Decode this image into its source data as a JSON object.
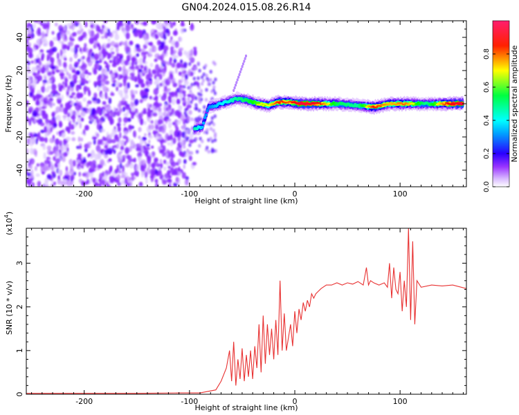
{
  "title": "GN04.2024.015.08.26.R14",
  "chart_data": [
    {
      "type": "heatmap",
      "xlabel": "Height of straight line (km)",
      "ylabel": "Frequency (Hz)",
      "xlim": [
        -255,
        163
      ],
      "ylim": [
        -50,
        50
      ],
      "xticks": [
        -200,
        -100,
        0,
        100
      ],
      "yticks": [
        -40,
        -20,
        0,
        20,
        40
      ],
      "grid": false,
      "colorbar": {
        "label": "Normalized spectral amplitude",
        "range": [
          0,
          1
        ],
        "ticks": [
          0.0,
          0.2,
          0.4,
          0.6,
          0.8
        ],
        "colors": [
          "#ffffff",
          "#9a35ff",
          "#0000ff",
          "#00ffff",
          "#00ff00",
          "#ffff00",
          "#ff0000",
          "#ff0066"
        ]
      },
      "noise_region": {
        "x": [
          -255,
          -90
        ],
        "y": [
          -50,
          50
        ],
        "amplitude": 0.2
      },
      "ridge": [
        {
          "x": -95,
          "y": -15,
          "amp": 0.55
        },
        {
          "x": -88,
          "y": -14,
          "amp": 0.45
        },
        {
          "x": -82,
          "y": -2,
          "amp": 0.4
        },
        {
          "x": -75,
          "y": -1,
          "amp": 0.45
        },
        {
          "x": -65,
          "y": 1,
          "amp": 0.5
        },
        {
          "x": -55,
          "y": 3,
          "amp": 0.55
        },
        {
          "x": -45,
          "y": 2,
          "amp": 0.6
        },
        {
          "x": -35,
          "y": 0,
          "amp": 0.7
        },
        {
          "x": -25,
          "y": -1,
          "amp": 0.7
        },
        {
          "x": -15,
          "y": 1,
          "amp": 0.85
        },
        {
          "x": -5,
          "y": 1,
          "amp": 0.8
        },
        {
          "x": 5,
          "y": 0,
          "amp": 0.95
        },
        {
          "x": 20,
          "y": 0,
          "amp": 0.9
        },
        {
          "x": 40,
          "y": 0,
          "amp": 0.6
        },
        {
          "x": 60,
          "y": -1,
          "amp": 0.55
        },
        {
          "x": 75,
          "y": -2,
          "amp": 0.85
        },
        {
          "x": 90,
          "y": 0,
          "amp": 0.75
        },
        {
          "x": 105,
          "y": 0,
          "amp": 0.8
        },
        {
          "x": 125,
          "y": 0,
          "amp": 0.55
        },
        {
          "x": 145,
          "y": 0,
          "amp": 0.85
        },
        {
          "x": 160,
          "y": 0,
          "amp": 0.95
        }
      ]
    },
    {
      "type": "line",
      "xlabel": "Height of straight line (km)",
      "ylabel": "SNR (10 * v/v)",
      "yscale_label": "(x10",
      "yscale_exp": "4",
      "yscale_close": ")",
      "xlim": [
        -255,
        163
      ],
      "ylim": [
        0,
        3.8
      ],
      "xticks": [
        -200,
        -100,
        0,
        100
      ],
      "yticks": [
        0,
        1,
        2,
        3
      ],
      "grid": false,
      "line_color": "#e83030",
      "series": [
        {
          "x": [
            -255,
            -200,
            -150,
            -110,
            -90,
            -75,
            -70,
            -65,
            -62,
            -60,
            -58,
            -56,
            -54,
            -52,
            -50,
            -48,
            -46,
            -44,
            -42,
            -40,
            -38,
            -36,
            -34,
            -32,
            -30,
            -28,
            -26,
            -24,
            -22,
            -20,
            -18,
            -16,
            -14,
            -12,
            -10,
            -8,
            -6,
            -4,
            -2,
            0,
            2,
            4,
            6,
            8,
            10,
            12,
            14,
            16,
            18,
            20,
            22,
            25,
            30,
            35,
            40,
            45,
            50,
            55,
            60,
            65,
            68,
            70,
            72,
            75,
            80,
            85,
            88,
            90,
            92,
            94,
            96,
            98,
            100,
            102,
            104,
            106,
            108,
            110,
            112,
            114,
            116,
            120,
            130,
            140,
            150,
            163
          ],
          "y": [
            0.02,
            0.02,
            0.02,
            0.03,
            0.03,
            0.1,
            0.3,
            0.6,
            1.0,
            0.3,
            1.2,
            0.2,
            0.8,
            0.35,
            1.05,
            0.3,
            0.9,
            0.4,
            1.0,
            0.35,
            1.1,
            0.6,
            1.6,
            0.5,
            1.8,
            0.7,
            1.6,
            0.9,
            1.5,
            0.8,
            1.7,
            0.9,
            2.6,
            1.0,
            1.85,
            1.0,
            1.3,
            1.6,
            1.1,
            1.9,
            1.4,
            1.95,
            1.7,
            2.1,
            1.9,
            2.15,
            2.0,
            2.3,
            2.2,
            2.3,
            2.35,
            2.42,
            2.5,
            2.5,
            2.55,
            2.5,
            2.55,
            2.52,
            2.58,
            2.5,
            2.9,
            2.5,
            2.6,
            2.55,
            2.5,
            2.55,
            2.45,
            3.0,
            2.2,
            2.9,
            2.4,
            2.3,
            2.8,
            1.9,
            2.6,
            2.0,
            3.8,
            1.7,
            3.5,
            1.6,
            2.6,
            2.45,
            2.5,
            2.48,
            2.5,
            2.42
          ]
        }
      ]
    }
  ]
}
